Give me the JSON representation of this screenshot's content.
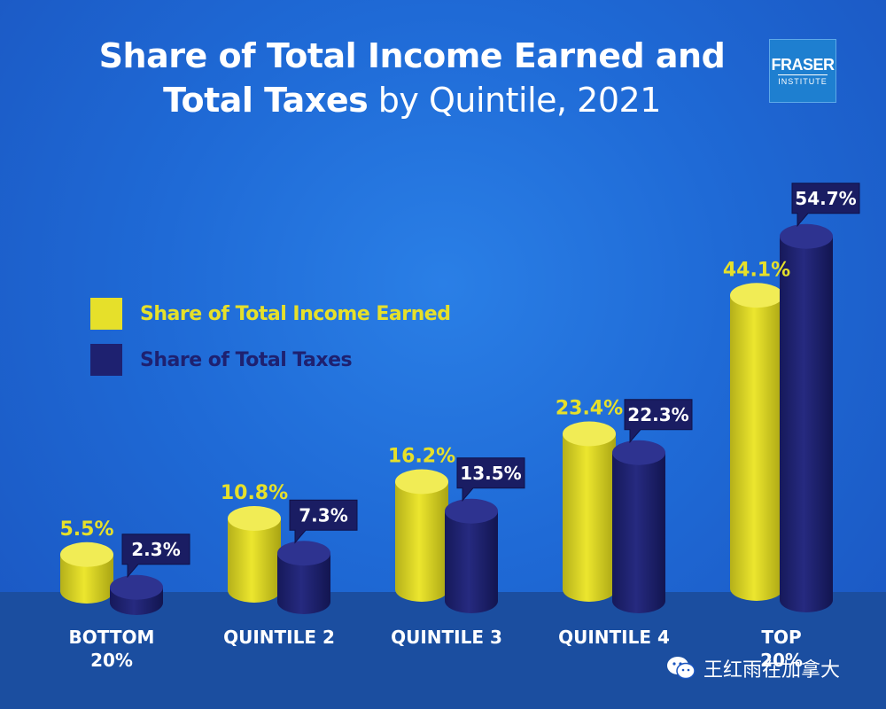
{
  "title": {
    "bold": "Share of Total Income Earned and Total Taxes",
    "light": "by Quintile, 2021"
  },
  "logo": {
    "line1": "FRASER",
    "line2": "INSTITUTE"
  },
  "watermark": {
    "text": "王红雨在加拿大",
    "icon": "wechat-icon"
  },
  "colors": {
    "income": "#e6e02a",
    "taxes": "#1e2170",
    "background": "#1f6ad6",
    "floor": "#1b4ea0"
  },
  "chart_data": {
    "type": "bar",
    "title": "Share of Total Income Earned and Total Taxes by Quintile, 2021",
    "categories": [
      [
        "BOTTOM",
        "20%"
      ],
      [
        "QUINTILE 2"
      ],
      [
        "QUINTILE 3"
      ],
      [
        "QUINTILE 4"
      ],
      [
        "TOP",
        "20%"
      ]
    ],
    "series": [
      {
        "name": "Share of Total Income Earned",
        "values": [
          5.5,
          10.8,
          16.2,
          23.4,
          44.1
        ],
        "labels": [
          "5.5%",
          "10.8%",
          "16.2%",
          "23.4%",
          "44.1%"
        ]
      },
      {
        "name": "Share of Total Taxes",
        "values": [
          2.3,
          7.3,
          13.5,
          22.3,
          54.7
        ],
        "labels": [
          "2.3%",
          "7.3%",
          "13.5%",
          "22.3%",
          "54.7%"
        ]
      }
    ],
    "ylim": [
      0,
      60
    ],
    "legend": "left",
    "grid": false,
    "style": "3d-cylinders"
  }
}
